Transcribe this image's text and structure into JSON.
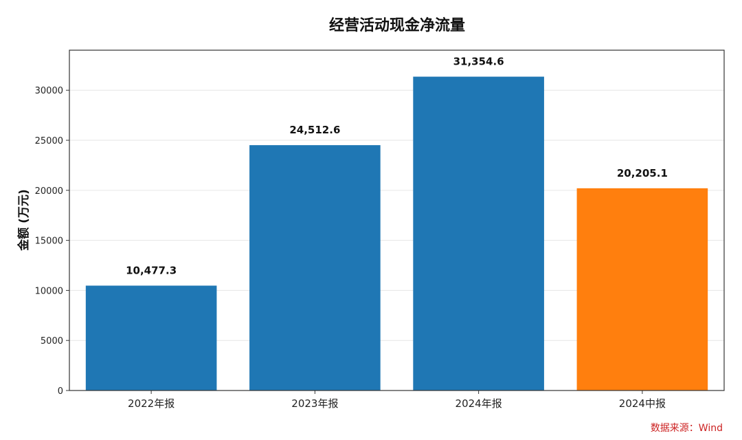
{
  "chart_data": {
    "type": "bar",
    "title": "经营活动现金净流量",
    "ylabel": "金额 (万元)",
    "xlabel": "",
    "categories": [
      "2022年报",
      "2023年报",
      "2024年报",
      "2024中报"
    ],
    "values": [
      10477.3,
      24512.6,
      31354.6,
      20205.1
    ],
    "data_labels": [
      "10,477.3",
      "24,512.6",
      "31,354.6",
      "20,205.1"
    ],
    "bar_colors": [
      "#1f77b4",
      "#1f77b4",
      "#1f77b4",
      "#ff7f0e"
    ],
    "ylim": [
      0,
      34000
    ],
    "yticks": [
      0,
      5000,
      10000,
      15000,
      20000,
      25000,
      30000
    ],
    "ytick_labels": [
      "0",
      "5000",
      "10000",
      "15000",
      "20000",
      "25000",
      "30000"
    ],
    "grid": true,
    "legend": "none"
  },
  "footer": {
    "source_note": "数据来源：Wind"
  }
}
